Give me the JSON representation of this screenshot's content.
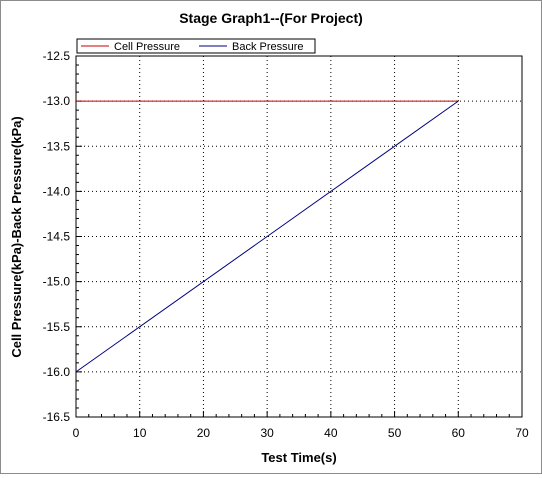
{
  "chart_data": {
    "type": "line",
    "title": "Stage Graph1--(For Project)",
    "xlabel": "Test Time(s)",
    "ylabel": "Cell Pressure(kPa)-Back Pressure(kPa)",
    "xlim": [
      0,
      70
    ],
    "ylim": [
      -16.5,
      -12.5
    ],
    "x_ticks": [
      0,
      10,
      20,
      30,
      40,
      50,
      60,
      70
    ],
    "y_ticks": [
      -12.5,
      -13.0,
      -13.5,
      -14.0,
      -14.5,
      -15.0,
      -15.5,
      -16.0,
      -16.5
    ],
    "x_tick_labels": [
      "0",
      "10",
      "20",
      "30",
      "40",
      "50",
      "60",
      "70"
    ],
    "y_tick_labels": [
      "-12.5",
      "-13.0",
      "-13.5",
      "-14.0",
      "-14.5",
      "-15.0",
      "-15.5",
      "-16.0",
      "-16.5"
    ],
    "grid": true,
    "legend_position": "top-left",
    "series": [
      {
        "name": "Cell Pressure",
        "color": "#cc0000",
        "x": [
          0,
          60
        ],
        "y": [
          -13.0,
          -13.0
        ]
      },
      {
        "name": "Back Pressure",
        "color": "#000080",
        "x": [
          0,
          60
        ],
        "y": [
          -16.0,
          -13.0
        ]
      }
    ]
  }
}
